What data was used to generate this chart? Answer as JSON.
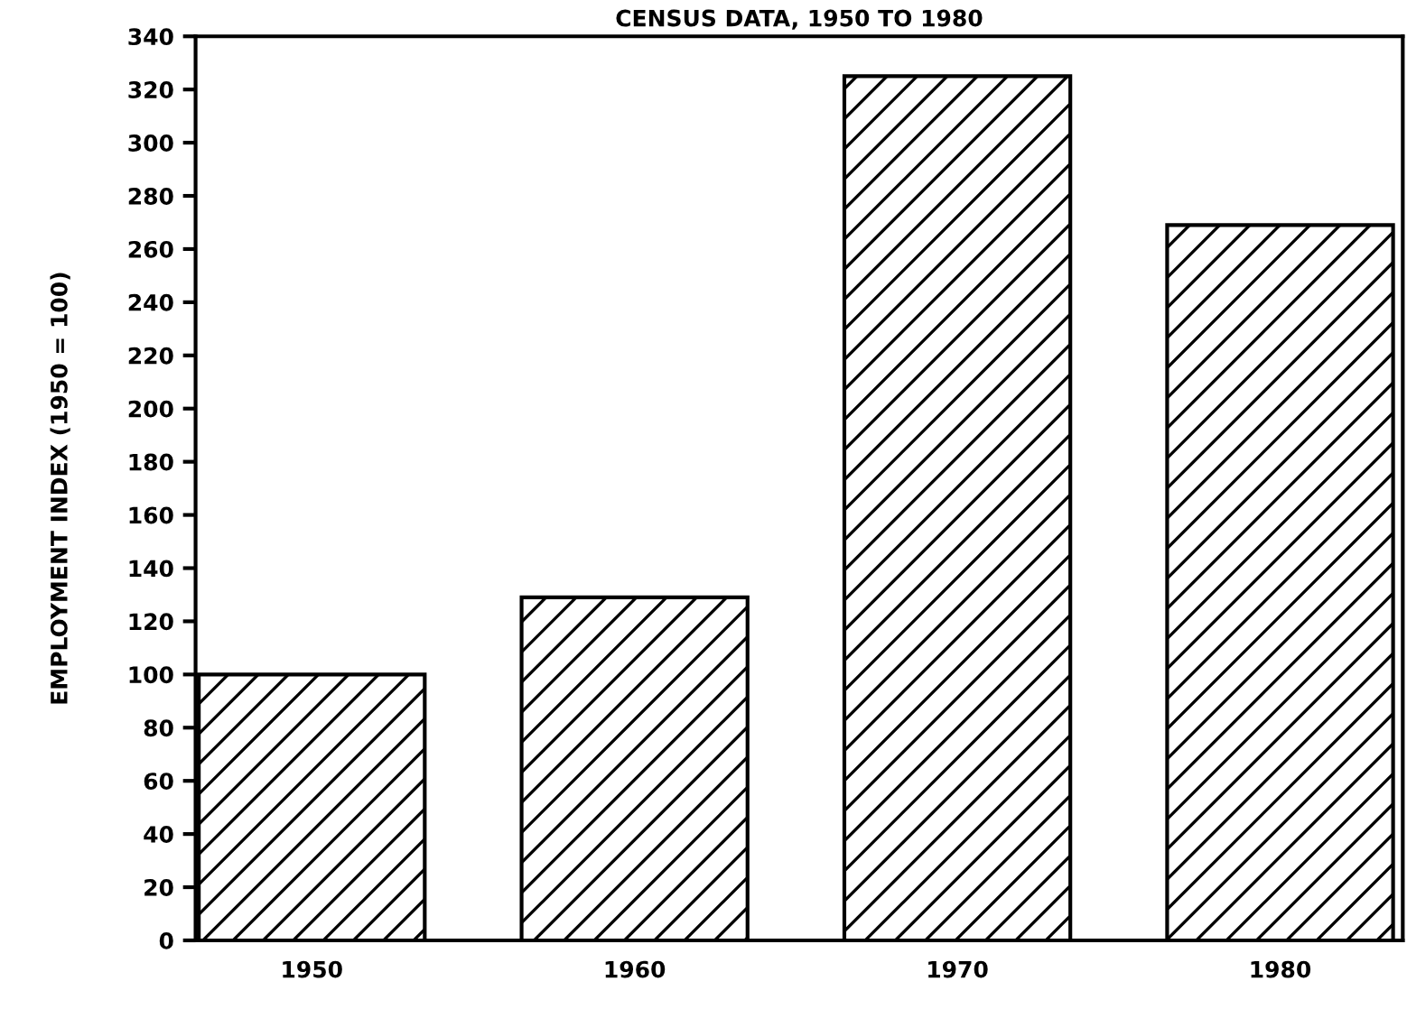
{
  "chart_data": {
    "type": "bar",
    "title": "CENSUS DATA, 1950 TO 1980",
    "ylabel": "EMPLOYMENT INDEX (1950 = 100)",
    "categories": [
      "1950",
      "1960",
      "1970",
      "1980"
    ],
    "values": [
      100,
      129,
      325,
      269
    ],
    "color": "#000000",
    "ylim": [
      0,
      340
    ],
    "yticks": [
      0,
      20,
      40,
      60,
      80,
      100,
      120,
      140,
      160,
      180,
      200,
      220,
      240,
      260,
      280,
      300,
      320,
      340
    ],
    "grid": false
  }
}
